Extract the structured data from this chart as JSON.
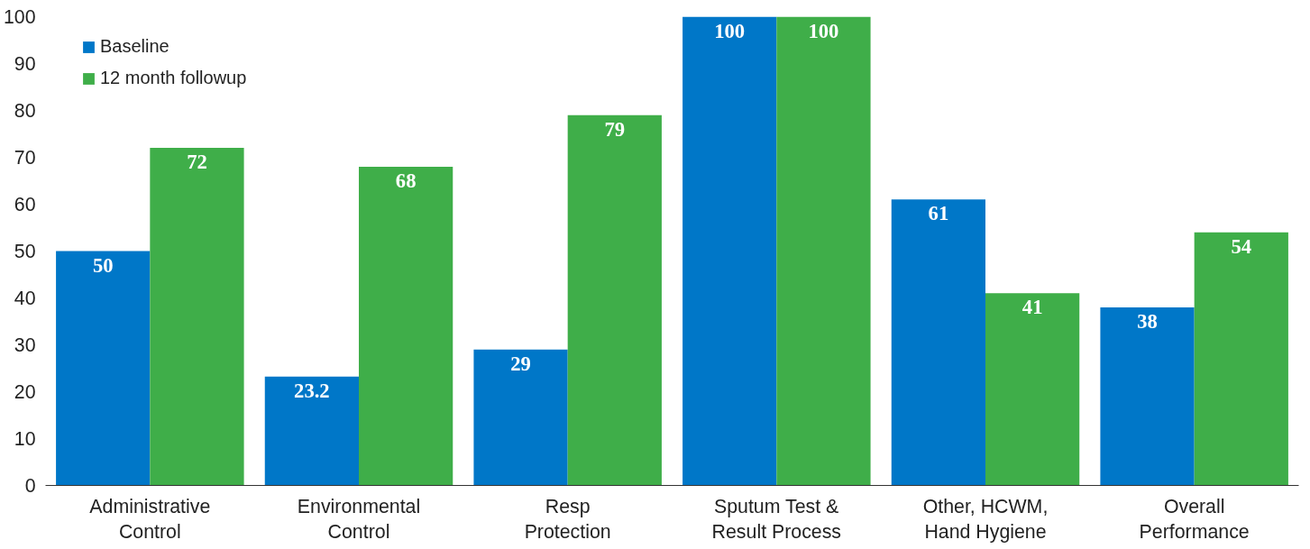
{
  "chart_data": {
    "type": "bar",
    "categories": [
      "Administrative Control",
      "Environmental Control",
      "Resp Protection",
      "Sputum Test & Result Process",
      "Other, HCWM, Hand Hygiene",
      "Overall Performance"
    ],
    "series": [
      {
        "name": "Baseline",
        "color": "#0077c8",
        "values": [
          50,
          23.2,
          29,
          100,
          61,
          38
        ]
      },
      {
        "name": "12 month followup",
        "color": "#3fae49",
        "values": [
          72,
          68,
          79,
          100,
          41,
          54
        ]
      }
    ],
    "ylim": [
      0,
      100
    ],
    "yticks": [
      0,
      10,
      20,
      30,
      40,
      50,
      60,
      70,
      80,
      90,
      100
    ],
    "grid": false,
    "legend": "top left",
    "data_labels": true
  }
}
